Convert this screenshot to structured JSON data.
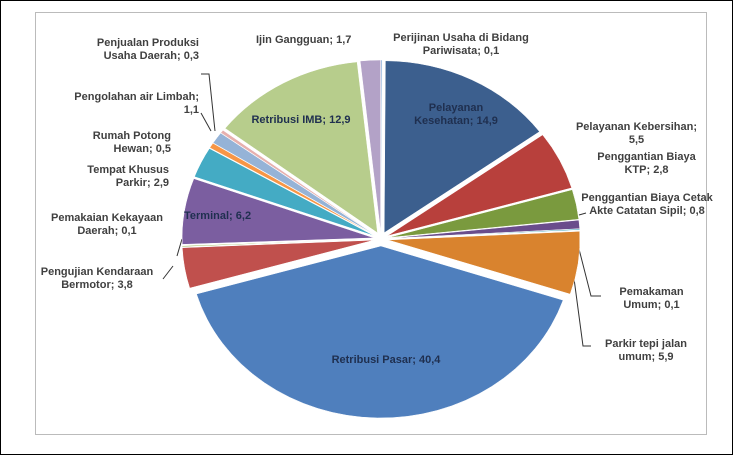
{
  "chart_data": {
    "type": "pie",
    "categories": [
      "Perijinan Usaha di Bidang Pariwisata",
      "Pelayanan Kesehatan",
      "Pelayanan Kebersihan",
      "Penggantian Biaya KTP",
      "Penggantian Biaya Cetak Akte Catatan Sipil",
      "Pemakaman Umum",
      "Parkir tepi jalan umum",
      "Retribusi Pasar",
      "Pengujian Kendaraan Bermotor",
      "Pemakaian Kekayaan Daerah",
      "Terminal",
      "Tempat Khusus Parkir",
      "Rumah Potong Hewan",
      "Pengolahan air Limbah",
      "Penjualan Produksi Usaha Daerah",
      "Retribusi IMB",
      "Ijin Gangguan"
    ],
    "values": [
      0.1,
      14.9,
      5.5,
      2.8,
      0.8,
      0.1,
      5.9,
      40.4,
      3.8,
      0.1,
      6.2,
      2.9,
      0.5,
      1.1,
      0.3,
      12.9,
      1.7
    ],
    "value_labels": [
      "0,1",
      "14,9",
      "5,5",
      "2,8",
      "0,8",
      "0,1",
      "5,9",
      "40,4",
      "3,8",
      "0,1",
      "6,2",
      "2,9",
      "0,5",
      "1,1",
      "0,3",
      "12,9",
      "1,7"
    ],
    "label_separator": "; ",
    "colors": [
      "#7fa6d6",
      "#3c5f8e",
      "#b8403c",
      "#7a9a3e",
      "#6a4d8c",
      "#3aa3b8",
      "#d9832e",
      "#4f7fbd",
      "#c0504d",
      "#9bbb59",
      "#7b5ea0",
      "#44abc4",
      "#f79646",
      "#95b3d7",
      "#e6b0ae",
      "#b7cd8c",
      "#b3a2c7"
    ]
  }
}
